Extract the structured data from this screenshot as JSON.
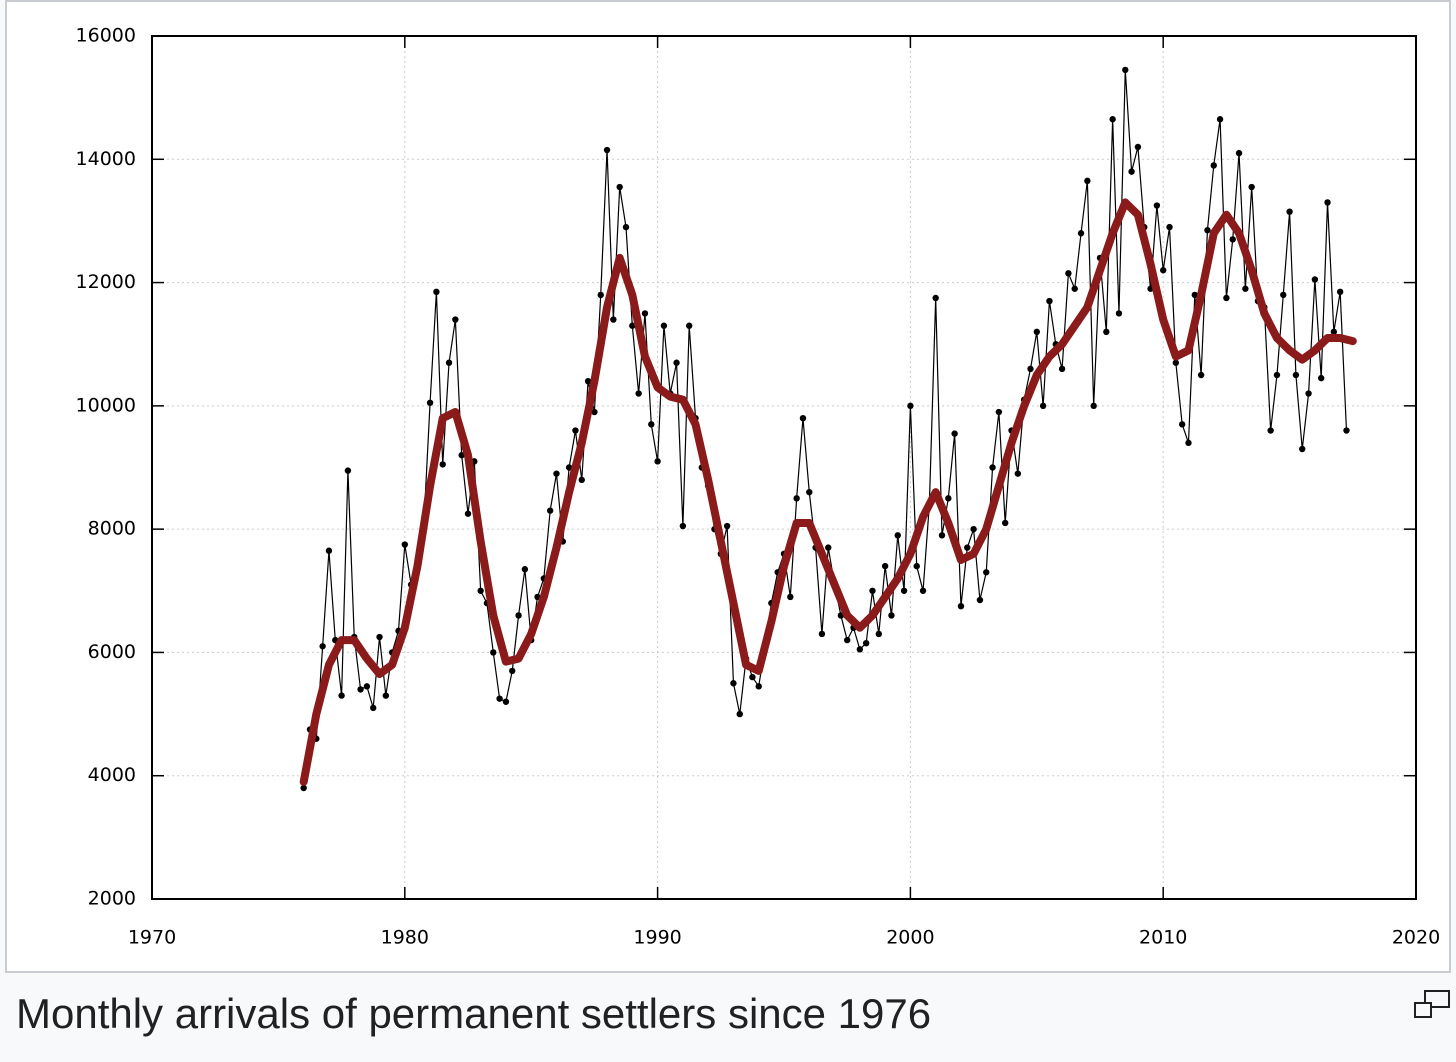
{
  "chart_data": {
    "type": "line",
    "caption": "Monthly arrivals of permanent settlers since 1976",
    "xlim": [
      1970,
      2020
    ],
    "xticks": [
      1970,
      1980,
      1990,
      2000,
      2010,
      2020
    ],
    "ylim": [
      2000,
      16000
    ],
    "yticks": [
      2000,
      4000,
      6000,
      8000,
      10000,
      12000,
      14000,
      16000
    ],
    "grid": true,
    "series": [
      {
        "color": "#000000",
        "markers": true,
        "x": [
          1976,
          1976.25,
          1976.5,
          1976.75,
          1977,
          1977.25,
          1977.5,
          1977.75,
          1978,
          1978.25,
          1978.5,
          1978.75,
          1979,
          1979.25,
          1979.5,
          1979.75,
          1980,
          1980.25,
          1980.5,
          1980.75,
          1981,
          1981.25,
          1981.5,
          1981.75,
          1982,
          1982.25,
          1982.5,
          1982.75,
          1983,
          1983.25,
          1983.5,
          1983.75,
          1984,
          1984.25,
          1984.5,
          1984.75,
          1985,
          1985.25,
          1985.5,
          1985.75,
          1986,
          1986.25,
          1986.5,
          1986.75,
          1987,
          1987.25,
          1987.5,
          1987.75,
          1988,
          1988.25,
          1988.5,
          1988.75,
          1989,
          1989.25,
          1989.5,
          1989.75,
          1990,
          1990.25,
          1990.5,
          1990.75,
          1991,
          1991.25,
          1991.5,
          1991.75,
          1992,
          1992.25,
          1992.5,
          1992.75,
          1993,
          1993.25,
          1993.5,
          1993.75,
          1994,
          1994.25,
          1994.5,
          1994.75,
          1995,
          1995.25,
          1995.5,
          1995.75,
          1996,
          1996.25,
          1996.5,
          1996.75,
          1997,
          1997.25,
          1997.5,
          1997.75,
          1998,
          1998.25,
          1998.5,
          1998.75,
          1999,
          1999.25,
          1999.5,
          1999.75,
          2000,
          2000.25,
          2000.5,
          2000.75,
          2001,
          2001.25,
          2001.5,
          2001.75,
          2002,
          2002.25,
          2002.5,
          2002.75,
          2003,
          2003.25,
          2003.5,
          2003.75,
          2004,
          2004.25,
          2004.5,
          2004.75,
          2005,
          2005.25,
          2005.5,
          2005.75,
          2006,
          2006.25,
          2006.5,
          2006.75,
          2007,
          2007.25,
          2007.5,
          2007.75,
          2008,
          2008.25,
          2008.5,
          2008.75,
          2009,
          2009.25,
          2009.5,
          2009.75,
          2010,
          2010.25,
          2010.5,
          2010.75,
          2011,
          2011.25,
          2011.5,
          2011.75,
          2012,
          2012.25,
          2012.5,
          2012.75,
          2013,
          2013.25,
          2013.5,
          2013.75,
          2014,
          2014.25,
          2014.5,
          2014.75,
          2015,
          2015.25,
          2015.5,
          2015.75,
          2016,
          2016.25,
          2016.5,
          2016.75,
          2017,
          2017.25
        ],
        "values": [
          3800,
          4750,
          4600,
          6100,
          7650,
          6200,
          5300,
          8950,
          6250,
          5400,
          5450,
          5100,
          6250,
          5300,
          6000,
          6350,
          7750,
          7100,
          7400,
          8050,
          10050,
          11850,
          9050,
          10700,
          11400,
          9200,
          8250,
          9100,
          7000,
          6800,
          6000,
          5250,
          5200,
          5700,
          6600,
          7350,
          6200,
          6900,
          7200,
          8300,
          8900,
          7800,
          9000,
          9600,
          8800,
          10400,
          9900,
          11800,
          14150,
          11400,
          13550,
          12900,
          11300,
          10200,
          11500,
          9700,
          9100,
          11300,
          10200,
          10700,
          8050,
          11300,
          9800,
          9000,
          8700,
          8000,
          7600,
          8050,
          5500,
          5000,
          5900,
          5600,
          5450,
          6100,
          6800,
          7300,
          7600,
          6900,
          8500,
          9800,
          8600,
          7700,
          6300,
          7700,
          7100,
          6600,
          6200,
          6400,
          6050,
          6150,
          7000,
          6300,
          7400,
          6600,
          7900,
          7000,
          10000,
          7400,
          7000,
          8400,
          11750,
          7900,
          8500,
          9550,
          6750,
          7700,
          8000,
          6850,
          7300,
          9000,
          9900,
          8100,
          9600,
          8900,
          10100,
          10600,
          11200,
          10000,
          11700,
          11000,
          10600,
          12150,
          11900,
          12800,
          13650,
          10000,
          12400,
          11200,
          14650,
          11500,
          15450,
          13800,
          14200,
          12900,
          11900,
          13250,
          12200,
          12900,
          10700,
          9700,
          9400,
          11800,
          10500,
          12850,
          13900,
          14650,
          11750,
          12700,
          14100,
          11900,
          13550,
          11700,
          11600,
          9600,
          10500,
          11800,
          13150,
          10500,
          9300,
          10200,
          12050,
          10450,
          13300,
          11200,
          11850,
          9600
        ]
      },
      {
        "color": "#8b1a1a",
        "markers": false,
        "x": [
          1976,
          1976.5,
          1977,
          1977.5,
          1978,
          1978.5,
          1979,
          1979.5,
          1980,
          1980.5,
          1981,
          1981.5,
          1982,
          1982.5,
          1983,
          1983.5,
          1984,
          1984.5,
          1985,
          1985.5,
          1986,
          1986.5,
          1987,
          1987.5,
          1988,
          1988.5,
          1989,
          1989.5,
          1990,
          1990.5,
          1991,
          1991.5,
          1992,
          1992.5,
          1993,
          1993.5,
          1994,
          1994.5,
          1995,
          1995.5,
          1996,
          1996.5,
          1997,
          1997.5,
          1998,
          1998.5,
          1999,
          1999.5,
          2000,
          2000.5,
          2001,
          2001.5,
          2002,
          2002.5,
          2003,
          2003.5,
          2004,
          2004.5,
          2005,
          2005.5,
          2006,
          2006.5,
          2007,
          2007.5,
          2008,
          2008.5,
          2009,
          2009.5,
          2010,
          2010.5,
          2011,
          2011.5,
          2012,
          2012.5,
          2013,
          2013.5,
          2014,
          2014.5,
          2015,
          2015.5,
          2016,
          2016.5,
          2017,
          2017.5
        ],
        "values": [
          3900,
          5000,
          5800,
          6200,
          6200,
          5900,
          5650,
          5800,
          6400,
          7400,
          8700,
          9800,
          9900,
          9200,
          7800,
          6600,
          5850,
          5900,
          6300,
          6900,
          7700,
          8600,
          9400,
          10400,
          11600,
          12400,
          11800,
          10800,
          10300,
          10150,
          10100,
          9700,
          8800,
          7800,
          6800,
          5800,
          5700,
          6500,
          7400,
          8100,
          8100,
          7600,
          7100,
          6600,
          6400,
          6600,
          6900,
          7200,
          7600,
          8200,
          8600,
          8100,
          7500,
          7600,
          8000,
          8700,
          9400,
          10000,
          10500,
          10800,
          11000,
          11300,
          11600,
          12200,
          12800,
          13300,
          13100,
          12300,
          11400,
          10800,
          10900,
          11800,
          12800,
          13100,
          12800,
          12200,
          11500,
          11100,
          10900,
          10750,
          10900,
          11100,
          11100,
          11050
        ]
      }
    ]
  }
}
